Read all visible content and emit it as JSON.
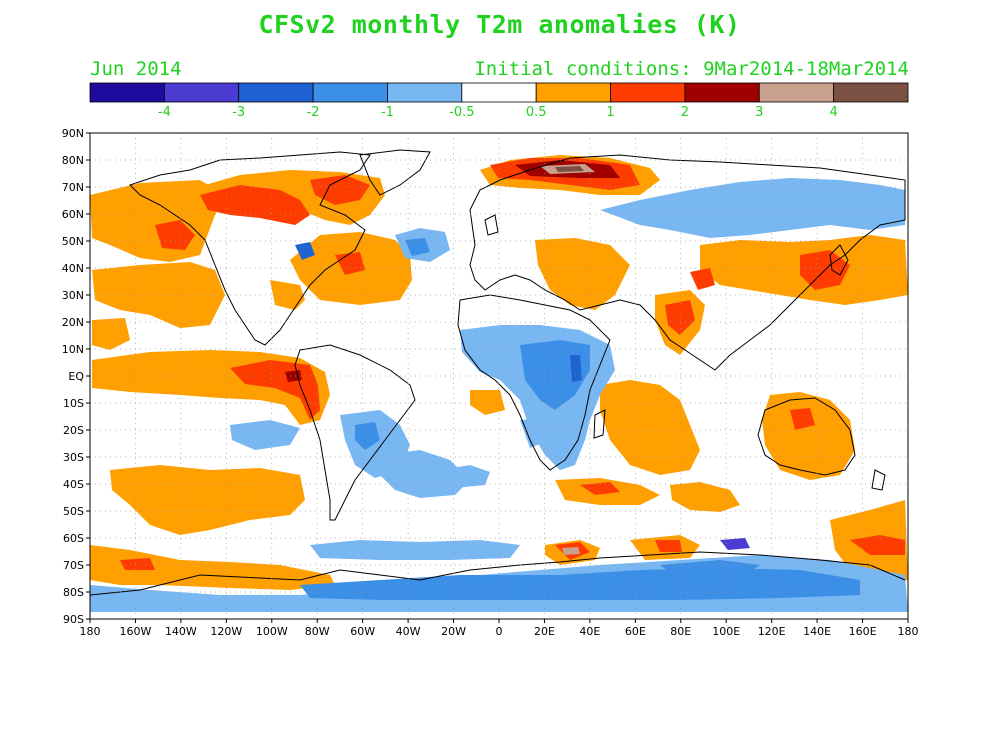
{
  "title": "CFSv2 monthly T2m anomalies (K)",
  "period": "Jun 2014",
  "initial_conditions": "Initial conditions: 9Mar2014-18Mar2014",
  "colorbar": {
    "colors": [
      "#1f0a9e",
      "#4b3bd1",
      "#1f63d3",
      "#3c8fe6",
      "#79b7f3",
      "#ffffff",
      "#ffa000",
      "#ff3c00",
      "#a00000",
      "#c9a08e",
      "#7a5142"
    ],
    "labels": [
      "-4",
      "-3",
      "-2",
      "-1",
      "-0.5",
      "0.5",
      "1",
      "2",
      "3",
      "4"
    ]
  },
  "axes": {
    "lat_labels": [
      "90N",
      "80N",
      "70N",
      "60N",
      "50N",
      "40N",
      "30N",
      "20N",
      "10N",
      "EQ",
      "10S",
      "20S",
      "30S",
      "40S",
      "50S",
      "60S",
      "70S",
      "80S",
      "90S"
    ],
    "lon_labels": [
      "180",
      "160W",
      "140W",
      "120W",
      "100W",
      "80W",
      "60W",
      "40W",
      "20W",
      "0",
      "20E",
      "40E",
      "60E",
      "80E",
      "100E",
      "120E",
      "140E",
      "160E",
      "180"
    ]
  },
  "map_data": {
    "anomaly_regions": [
      {
        "name": "N Pacific warm",
        "lon": [
          -170,
          -125
        ],
        "lat": [
          40,
          60
        ],
        "class": "0.5-1"
      },
      {
        "name": "Gulf of Alaska warm",
        "lon": [
          -150,
          -135
        ],
        "lat": [
          45,
          55
        ],
        "class": "1-2"
      },
      {
        "name": "Hudson Bay warm",
        "lon": [
          -110,
          -65
        ],
        "lat": [
          55,
          70
        ],
        "class": "1-2"
      },
      {
        "name": "E Pacific equatorial warm",
        "lon": [
          -130,
          -80
        ],
        "lat": [
          -15,
          5
        ],
        "class": "1-2"
      },
      {
        "name": "Arctic Siberia warm",
        "lon": [
          20,
          70
        ],
        "lat": [
          68,
          80
        ],
        "class": "3-4"
      },
      {
        "name": "Central Africa cool",
        "lon": [
          -10,
          40
        ],
        "lat": [
          -25,
          10
        ],
        "class": "-1 to -0.5"
      },
      {
        "name": "Indian Ocean warm",
        "lon": [
          50,
          100
        ],
        "lat": [
          -30,
          0
        ],
        "class": "0.5-1"
      },
      {
        "name": "Japan warm",
        "lon": [
          130,
          145
        ],
        "lat": [
          30,
          45
        ],
        "class": "1-2"
      },
      {
        "name": "Antarctica cool",
        "lon": [
          -180,
          180
        ],
        "lat": [
          -90,
          -70
        ],
        "class": "-1 to -0.5"
      }
    ]
  }
}
